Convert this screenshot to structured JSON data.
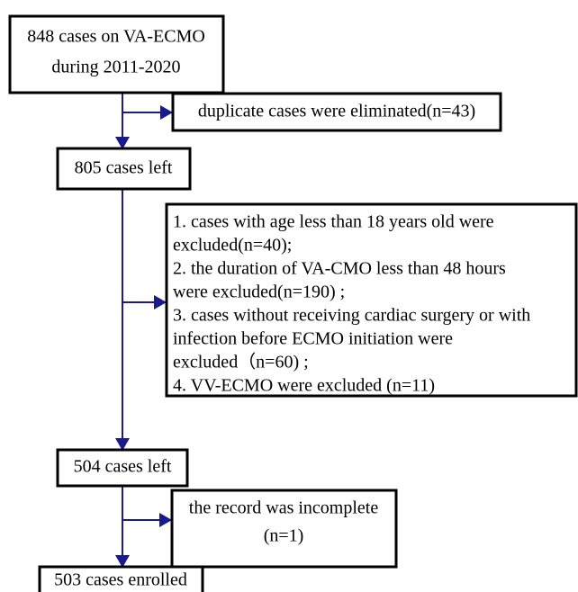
{
  "nodes": [
    {
      "lines": [
        "848 cases  on VA-ECMO",
        "during 2011-2020"
      ]
    },
    {
      "lines": [
        "duplicate cases were eliminated(n=43)"
      ]
    },
    {
      "lines": [
        "805 cases left"
      ]
    },
    {
      "lines": [
        "1. cases with age less than 18 years old were",
        "excluded(n=40);",
        "2. the duration of VA-CMO less than 48 hours",
        "were excluded(n=190) ;",
        "3. cases without receiving cardiac surgery or with",
        "infection before  ECMO initiation were",
        "excluded（n=60) ;",
        "4.  VV-ECMO were excluded (n=11)"
      ]
    },
    {
      "lines": [
        "504 cases left"
      ]
    },
    {
      "lines": [
        "the record was incomplete",
        "(n=1)"
      ]
    },
    {
      "lines": [
        "503 cases enrolled"
      ]
    }
  ]
}
